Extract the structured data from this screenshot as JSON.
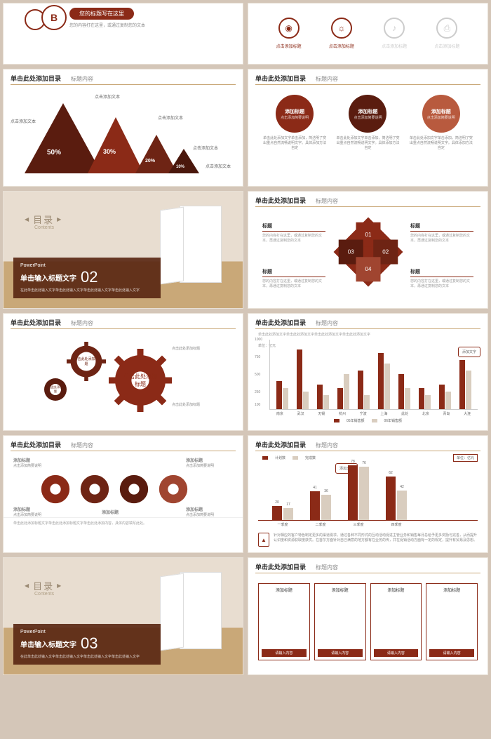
{
  "colors": {
    "primary": "#8b2a17",
    "dark": "#5a1c0f",
    "light": "#b85a3e",
    "neutral": "#d9cdbf"
  },
  "common": {
    "header": "单击此处添加目录",
    "sub_header": "标题内容",
    "add_text": "点击添加文本",
    "add_title": "添加标题",
    "desc": "点击添加简要说明",
    "long_desc": "单击此处添加文字单击此处添加文字单击此处添加文字单击此处添加文字"
  },
  "s1": {
    "letter": "B",
    "title": "您的标题写在这里",
    "sub": "您的内容打在这里，或通过复制您的文本"
  },
  "s2": {
    "icons": [
      "◉",
      "☼",
      "♪",
      "⎙"
    ],
    "labels": [
      "点击添加标题",
      "点击添加标题",
      "点击添加标题",
      "点击添加标题"
    ]
  },
  "s3": {
    "pcts": [
      "50%",
      "30%",
      "20%",
      "10%"
    ]
  },
  "s4": {
    "circles": [
      {
        "title": "添加标题",
        "sub": "点击添加简要说明"
      },
      {
        "title": "添加标题",
        "sub": "点击添加简要说明"
      },
      {
        "title": "添加标题",
        "sub": "点击添加简要说明"
      }
    ],
    "desc": "单击此处添加文字单击添加，简洁明了突出重点自然流畅说明文字。具体添加方法自定"
  },
  "toc": {
    "label": "目录",
    "sub": "Contents",
    "pp": "PowerPoint",
    "title": "单击输入标题文字",
    "s5_num": "02",
    "s11_num": "03",
    "small": "在此单击此处输入文字单击此处输入文字单击此处输入文字单击此处输入文字"
  },
  "s6": {
    "nums": [
      "01",
      "02",
      "03",
      "04"
    ],
    "side_title": "标题",
    "side_desc": "您的内容打在这里，或通过复制您的文本，再通过复制您的文本"
  },
  "s7": {
    "big": "单击此处添加标题",
    "mid": "单击此处添加标题",
    "small": "单击此处添加标题",
    "tiny_label": "点击此处添加标题"
  },
  "s8": {
    "unit": "单位：亿元",
    "ylabels": [
      "1000",
      "750",
      "500",
      "250",
      "100"
    ],
    "cities": [
      "南京",
      "武汉",
      "无锡",
      "杭州",
      "宁波",
      "上海",
      "此处",
      "北京",
      "青岛",
      "大连"
    ],
    "series1": [
      40,
      85,
      35,
      30,
      55,
      80,
      50,
      30,
      35,
      70
    ],
    "series2": [
      30,
      25,
      20,
      50,
      20,
      65,
      30,
      20,
      25,
      55
    ],
    "legend": [
      "05年销售额",
      "06年销售额"
    ],
    "note": "添加文字"
  },
  "s9": {
    "items": [
      "添加标题",
      "添加标题",
      "添加标题",
      "添加标题",
      "添加标题"
    ],
    "bottom": "单击此处添加标题文字单击此处添加标题文字单击此处添加内容，具体内容填写此处。"
  },
  "s10": {
    "legend": [
      "计划数",
      "完成数"
    ],
    "unit": "单位：亿元",
    "note": "添加文字",
    "quarters": [
      "一季度",
      "二季度",
      "三季度",
      "四季度"
    ],
    "v1": [
      20,
      41,
      78,
      62
    ],
    "v2": [
      17,
      36,
      76,
      42
    ],
    "footer": "针对相应的客户特色制定更多的渠道需求。通过各种不同形式的互动活动促进主管业务和销售每月总给予更多奖励与完善，从而提升认识度和资源获取度获优。在首尔方面针对自己满意的地方都有在业务的传，并在促销活动方面有一定的规定，提升有贸易及思想。"
  },
  "s12": {
    "card_title": "添加标题",
    "card_btn": "请输入内容"
  }
}
